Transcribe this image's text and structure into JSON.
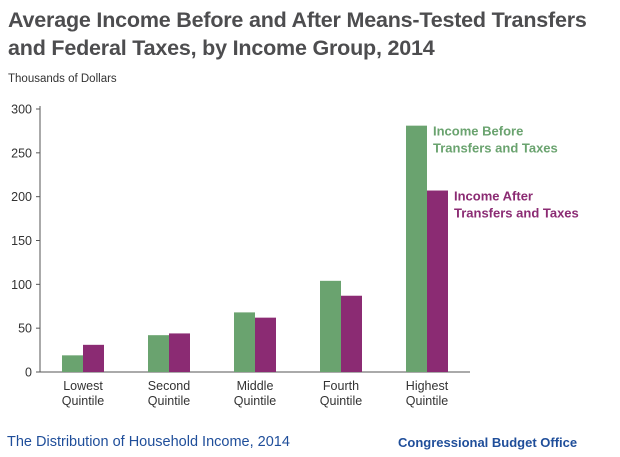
{
  "chart_data": {
    "type": "bar",
    "title": "Average Income Before and After Means-Tested Transfers and Federal Taxes, by Income Group, 2014",
    "ylabel": "Thousands of Dollars",
    "xlabel": "",
    "ylim": [
      0,
      300
    ],
    "yticks": [
      0,
      50,
      100,
      150,
      200,
      250,
      300
    ],
    "categories": [
      [
        "Lowest",
        "Quintile"
      ],
      [
        "Second",
        "Quintile"
      ],
      [
        "Middle",
        "Quintile"
      ],
      [
        "Fourth",
        "Quintile"
      ],
      [
        "Highest",
        "Quintile"
      ]
    ],
    "series": [
      {
        "name": [
          "Income Before",
          "Transfers and Taxes"
        ],
        "color": "#6aa36f",
        "values": [
          19,
          42,
          68,
          104,
          281
        ]
      },
      {
        "name": [
          "Income After",
          "Transfers and Taxes"
        ],
        "color": "#8b2b73",
        "values": [
          31,
          44,
          62,
          87,
          207
        ]
      }
    ],
    "grid": false,
    "legend_placement": "inline labels beside highest quintile bars"
  },
  "footer": {
    "left": "The Distribution of Household Income, 2014",
    "right": "Congressional Budget Office"
  }
}
